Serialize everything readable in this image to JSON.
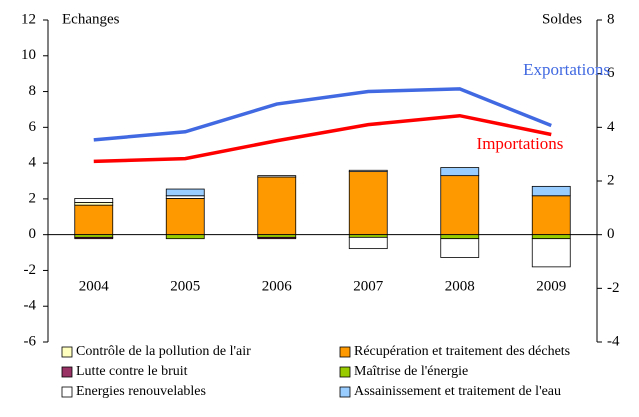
{
  "chart_data": {
    "type": "bar",
    "y_label": "Echanges",
    "y2_label": "Soldes",
    "categories": [
      "2004",
      "2005",
      "2006",
      "2007",
      "2008",
      "2009"
    ],
    "ylim": [
      -6,
      12
    ],
    "yticks": [
      -6,
      -4,
      -2,
      0,
      2,
      4,
      6,
      8,
      10,
      12
    ],
    "y2lim": [
      -4,
      8
    ],
    "y2ticks": [
      -4,
      -2,
      0,
      2,
      4,
      6,
      8
    ],
    "series": [
      {
        "name": "Contrôle de la pollution de l'air",
        "color": "#ffffc0",
        "axis": "y2",
        "values": [
          0.1,
          0,
          0,
          0,
          0,
          0
        ]
      },
      {
        "name": "Récupération et traitement des déchets",
        "color": "#ff9900",
        "axis": "y2",
        "values": [
          1.1,
          1.35,
          2.15,
          2.35,
          2.2,
          1.45
        ]
      },
      {
        "name": "Lutte contre le bruit",
        "color": "#993366",
        "axis": "y2",
        "values": [
          -0.05,
          0,
          -0.05,
          0,
          0,
          0
        ]
      },
      {
        "name": "Maîtrise de l'énergie",
        "color": "#99cc00",
        "axis": "y2",
        "values": [
          -0.1,
          -0.15,
          -0.1,
          -0.1,
          -0.15,
          -0.15
        ]
      },
      {
        "name": "Energies renouvelables",
        "color": "#ffffff",
        "axis": "y2",
        "values": [
          0.15,
          0.1,
          0.05,
          0.05,
          0,
          0
        ]
      },
      {
        "name": "Assainissement et traitement de l'eau",
        "color": "#99ccff",
        "axis": "y2",
        "values": [
          0,
          0.25,
          0,
          0,
          0.3,
          0.35
        ]
      },
      {
        "name": "Exportations",
        "color": "#4169e1",
        "axis": "y",
        "values": [
          5.3,
          5.75,
          7.3,
          8.0,
          8.15,
          6.1
        ]
      },
      {
        "name": "Importations",
        "color": "#ff0000",
        "axis": "y",
        "values": [
          4.1,
          4.25,
          5.25,
          6.15,
          6.65,
          5.6
        ]
      }
    ],
    "energy_negative": [
      0,
      0,
      0,
      -0.42,
      -0.7,
      -1.05
    ]
  }
}
